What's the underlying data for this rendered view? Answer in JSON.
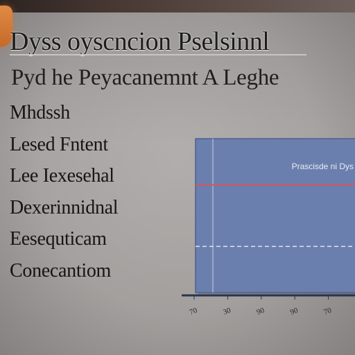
{
  "slide": {
    "title": "Dyss oyscncion Pselsinnl",
    "subtitle": "Pyd he Peyacanemnt A Leghe",
    "items": [
      "Mhdssh",
      "Lesed Fntent",
      "Lee Iexesehal",
      "Dexerinnidnal",
      "Eesequticam",
      "Conecantiom"
    ]
  },
  "chart_data": {
    "type": "line",
    "title": "Prascisde ni Dys",
    "xlabel": "",
    "ylabel": "",
    "x_tick_labels": [
      "70",
      "30",
      "90",
      "90",
      "70"
    ],
    "series": [
      {
        "style": "solid",
        "color": "#d9535e",
        "y": 0.7
      },
      {
        "style": "dashed",
        "color": "#dfe4f0",
        "y": 0.3
      }
    ],
    "ylim": [
      0,
      1
    ],
    "grid": false,
    "background_color": "#6b7fae"
  }
}
